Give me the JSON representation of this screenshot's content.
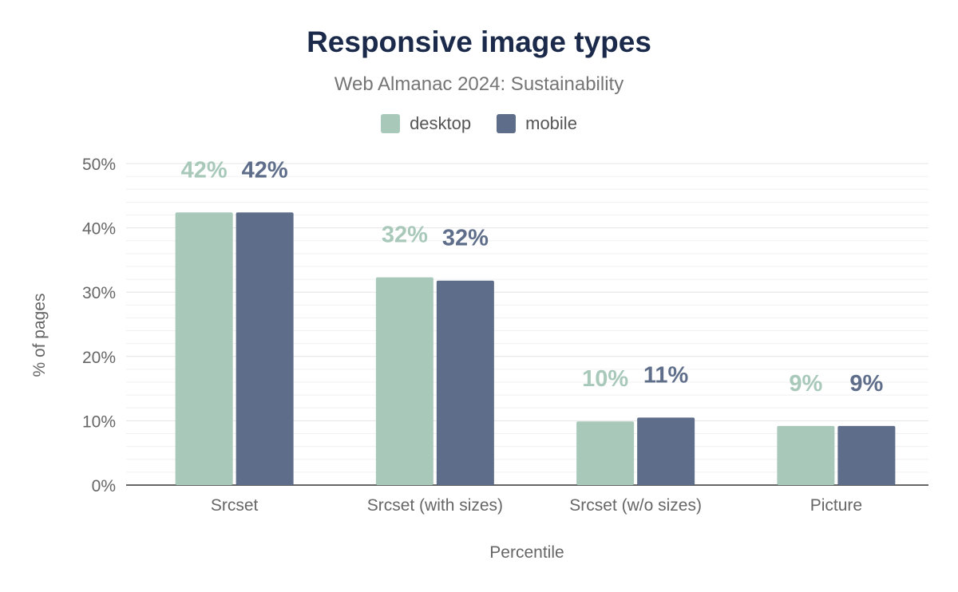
{
  "chart_data": {
    "type": "bar",
    "title": "Responsive image types",
    "subtitle": "Web Almanac 2024: Sustainability",
    "xlabel": "Percentile",
    "ylabel": "% of pages",
    "categories": [
      "Srcset",
      "Srcset (with sizes)",
      "Srcset (w/o sizes)",
      "Picture"
    ],
    "series": [
      {
        "name": "desktop",
        "color": "#a8c9ba",
        "values": [
          42.4,
          32.3,
          9.9,
          9.2
        ],
        "labels": [
          "42%",
          "32%",
          "10%",
          "9%"
        ]
      },
      {
        "name": "mobile",
        "color": "#5e6e8a",
        "values": [
          42.4,
          31.8,
          10.5,
          9.2
        ],
        "labels": [
          "42%",
          "32%",
          "11%",
          "9%"
        ]
      }
    ],
    "ylim": [
      0,
      50
    ],
    "yticks": [
      "0%",
      "10%",
      "20%",
      "30%",
      "40%",
      "50%"
    ],
    "grid": true,
    "legend": "top-center"
  }
}
